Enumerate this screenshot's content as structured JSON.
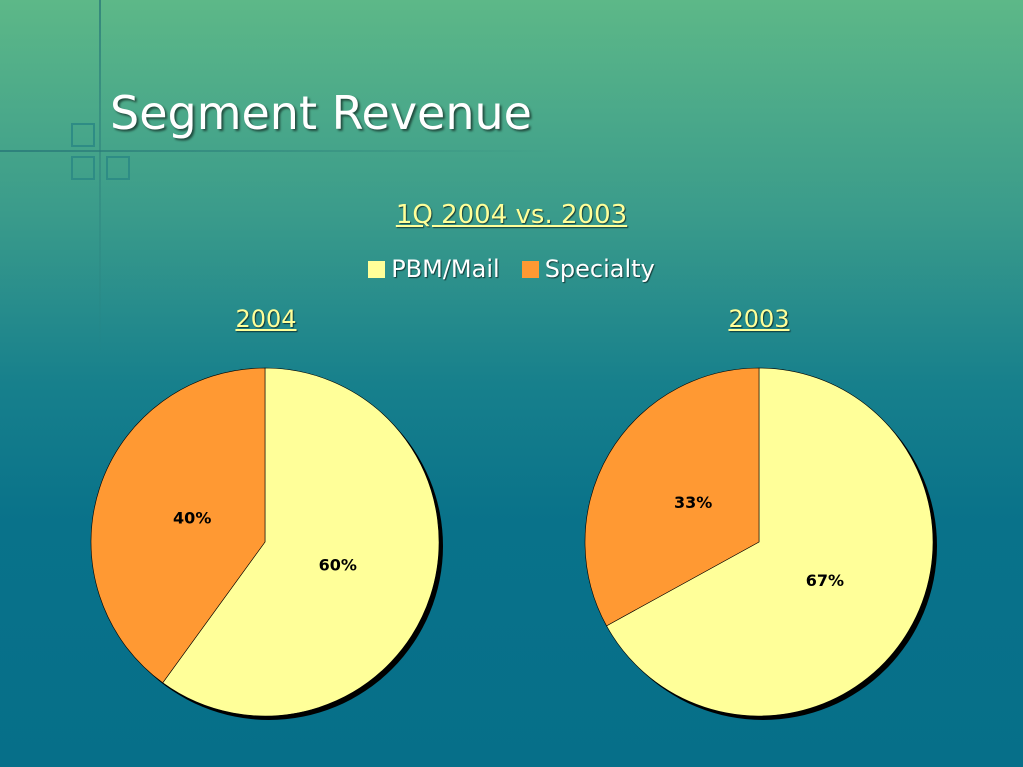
{
  "slide": {
    "title": "Segment Revenue",
    "subtitle": "1Q 2004 vs. 2003"
  },
  "legend": [
    {
      "label": "PBM/Mail",
      "color": "#ffff99"
    },
    {
      "label": "Specialty",
      "color": "#ff9933"
    }
  ],
  "colors": {
    "pbm_mail": "#ffff99",
    "specialty": "#ff9933"
  },
  "chart_data": [
    {
      "type": "pie",
      "title": "2004",
      "categories": [
        "PBM/Mail",
        "Specialty"
      ],
      "values": [
        60,
        40
      ],
      "labels": [
        "60%",
        "40%"
      ]
    },
    {
      "type": "pie",
      "title": "2003",
      "categories": [
        "PBM/Mail",
        "Specialty"
      ],
      "values": [
        67,
        33
      ],
      "labels": [
        "67%",
        "33%"
      ]
    }
  ]
}
